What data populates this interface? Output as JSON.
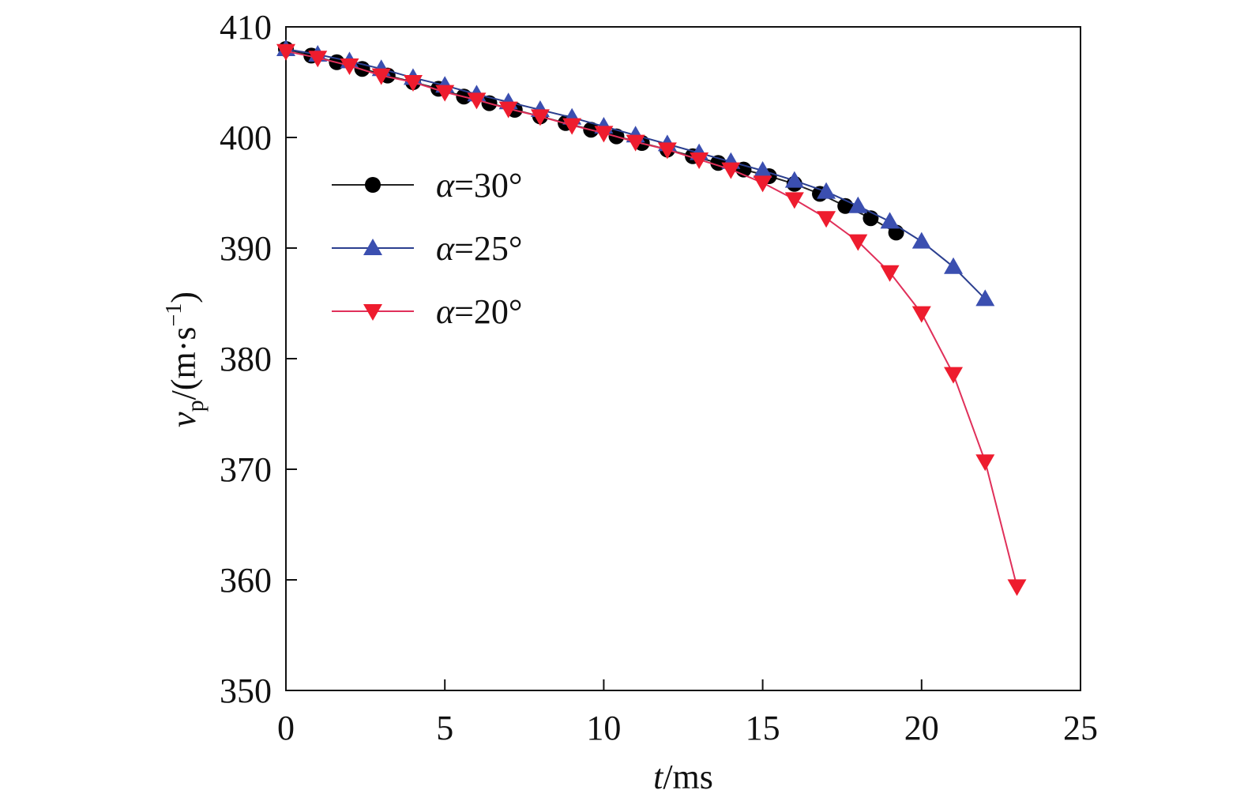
{
  "chart_data": {
    "type": "line",
    "xlabel": {
      "var": "t",
      "unit": "/ms"
    },
    "ylabel": {
      "var": "v",
      "sub": "p",
      "unit_pre": "/(m·s",
      "sup": "−1",
      "unit_post": ")"
    },
    "xlim": [
      0,
      25
    ],
    "ylim": [
      350,
      410
    ],
    "xticks": [
      0,
      5,
      10,
      15,
      20,
      25
    ],
    "yticks": [
      350,
      360,
      370,
      380,
      390,
      400,
      410
    ],
    "grid": false,
    "legend": {
      "position": "top-left"
    },
    "series": [
      {
        "name": "α=30°",
        "name_var": "α",
        "name_rest": "=30°",
        "color": "#222222",
        "marker_color": "#000000",
        "marker": "circle",
        "x": [
          0,
          0.8,
          1.6,
          2.4,
          3.2,
          4.0,
          4.8,
          5.6,
          6.4,
          7.2,
          8.0,
          8.8,
          9.6,
          10.4,
          11.2,
          12.0,
          12.8,
          13.6,
          14.4,
          15.2,
          16.0,
          16.8,
          17.6,
          18.4,
          19.2
        ],
        "y": [
          408.0,
          407.4,
          406.8,
          406.2,
          405.6,
          405.0,
          404.4,
          403.7,
          403.1,
          402.5,
          401.9,
          401.3,
          400.7,
          400.1,
          399.5,
          398.9,
          398.3,
          397.7,
          397.1,
          396.5,
          395.8,
          394.9,
          393.8,
          392.7,
          391.4
        ]
      },
      {
        "name": "α=25°",
        "name_var": "α",
        "name_rest": "=25°",
        "color": "#2b3f8f",
        "marker_color": "#3b4fb0",
        "marker": "triangle-up",
        "x": [
          0,
          1,
          2,
          3,
          4,
          5,
          6,
          7,
          8,
          9,
          10,
          11,
          12,
          13,
          14,
          15,
          16,
          17,
          18,
          19,
          20,
          21,
          22
        ],
        "y": [
          408.0,
          407.5,
          406.9,
          406.2,
          405.4,
          404.7,
          403.9,
          403.2,
          402.5,
          401.8,
          401.0,
          400.2,
          399.4,
          398.6,
          397.8,
          397.0,
          396.1,
          395.1,
          393.8,
          392.4,
          390.6,
          388.3,
          385.4
        ]
      },
      {
        "name": "α=20°",
        "name_var": "α",
        "name_rest": "=20°",
        "color": "#e0305a",
        "marker_color": "#ee1c2e",
        "marker": "triangle-down",
        "x": [
          0,
          1,
          2,
          3,
          4,
          5,
          6,
          7,
          8,
          9,
          10,
          11,
          12,
          13,
          14,
          15,
          16,
          17,
          18,
          19,
          20,
          21,
          22,
          23
        ],
        "y": [
          407.8,
          407.2,
          406.5,
          405.6,
          405.0,
          404.1,
          403.4,
          402.6,
          401.9,
          401.1,
          400.4,
          399.6,
          398.9,
          398.0,
          397.1,
          395.9,
          394.4,
          392.7,
          390.6,
          387.8,
          384.1,
          378.6,
          370.7,
          359.4
        ]
      }
    ]
  }
}
